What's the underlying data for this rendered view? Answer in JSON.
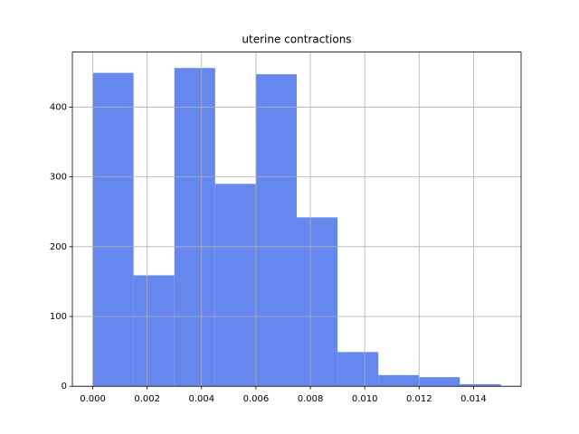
{
  "chart_data": {
    "type": "histogram",
    "title": "uterine contractions",
    "bins": [
      0,
      0.0015,
      0.003,
      0.0045,
      0.006,
      0.0075,
      0.009,
      0.0105,
      0.012,
      0.0135,
      0.015
    ],
    "values": [
      449,
      159,
      456,
      290,
      447,
      242,
      49,
      16,
      13,
      3
    ],
    "color": "#6688ee",
    "xlim": [
      -0.00075,
      0.01575
    ],
    "xticks": [
      {
        "value": 0,
        "label": "0.000"
      },
      {
        "value": 0.002,
        "label": "0.002"
      },
      {
        "value": 0.004,
        "label": "0.004"
      },
      {
        "value": 0.006,
        "label": "0.006"
      },
      {
        "value": 0.008,
        "label": "0.008"
      },
      {
        "value": 0.01,
        "label": "0.010"
      },
      {
        "value": 0.012,
        "label": "0.012"
      },
      {
        "value": 0.014,
        "label": "0.014"
      }
    ],
    "ylim": [
      0,
      478.8
    ],
    "yticks": [
      0,
      100,
      200,
      300,
      400
    ],
    "grid": true
  }
}
